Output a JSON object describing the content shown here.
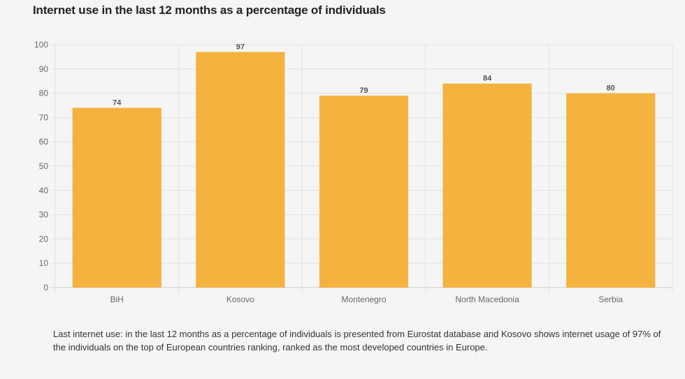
{
  "title": "Internet use in the last 12 months as a percentage of individuals",
  "chart_data": {
    "type": "bar",
    "title": "Internet use in the last 12 months as a percentage of individuals",
    "categories": [
      "BiH",
      "Kosovo",
      "Montenegro",
      "North Macedonia",
      "Serbia"
    ],
    "values": [
      74,
      97,
      79,
      84,
      80
    ],
    "xlabel": "",
    "ylabel": "",
    "ylim": [
      0,
      100
    ],
    "yticks": [
      0,
      10,
      20,
      30,
      40,
      50,
      60,
      70,
      80,
      90,
      100
    ],
    "grid": true,
    "data_labels": true,
    "bar_color": "#f4b23f"
  },
  "caption": "Last internet use: in the last 12 months as a percentage of individuals is presented from Eurostat database and Kosovo shows internet usage of 97% of the individuals on the top of European countries ranking, ranked as the most developed countries in Europe."
}
